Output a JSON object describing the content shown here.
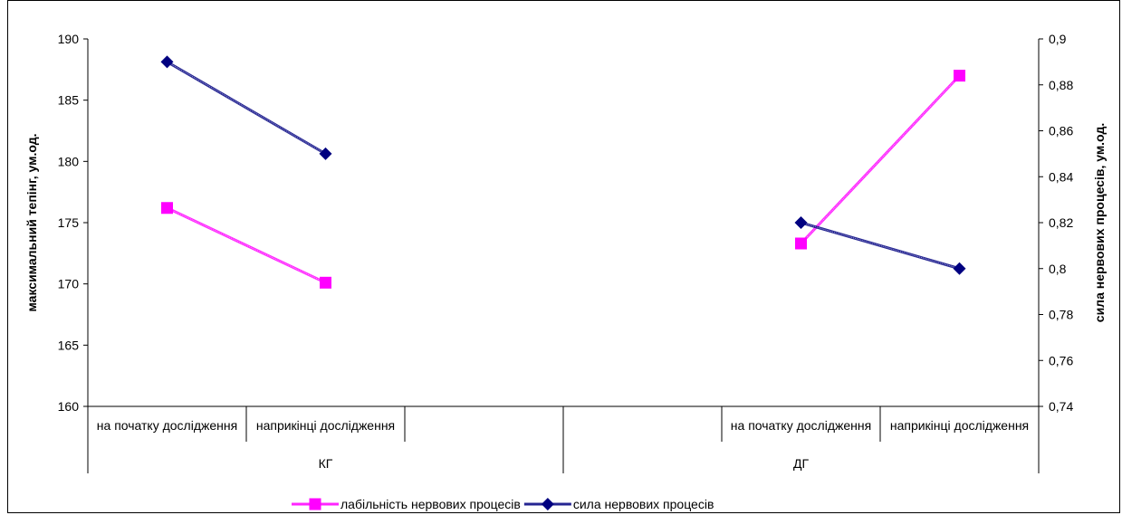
{
  "chart_data": {
    "type": "line",
    "group_labels": [
      "КГ",
      "ДГ"
    ],
    "categories": [
      {
        "label": "на початку дослідження",
        "group": "КГ"
      },
      {
        "label": "наприкінці дослідження",
        "group": "КГ"
      },
      {
        "label": "",
        "group": "КГ"
      },
      {
        "label": "",
        "group": "ДГ"
      },
      {
        "label": "на початку дослідження",
        "group": "ДГ"
      },
      {
        "label": "наприкінці дослідження",
        "group": "ДГ"
      }
    ],
    "ylabel": "максимальний тепінг, ум.од.",
    "y2label": "сила нервових процесів, ум.од.",
    "ylim": [
      160,
      190
    ],
    "y2lim": [
      0.74,
      0.9
    ],
    "y_ticks": [
      "160",
      "165",
      "170",
      "175",
      "180",
      "185",
      "190"
    ],
    "y2_ticks": [
      "0,74",
      "0,76",
      "0,78",
      "0,8",
      "0,82",
      "0,84",
      "0,86",
      "0,88",
      "0,9"
    ],
    "series": [
      {
        "name": "лабільність нервових процесів",
        "axis": "left",
        "color": "#ff00ff",
        "marker": "square",
        "segments": [
          {
            "points": [
              [
                0,
                176.2
              ],
              [
                1,
                170.1
              ]
            ]
          },
          {
            "points": [
              [
                4,
                173.3
              ],
              [
                5,
                187
              ]
            ]
          }
        ]
      },
      {
        "name": "сила нервових процесів",
        "axis": "right",
        "color": "#000080",
        "marker": "diamond",
        "segments": [
          {
            "points": [
              [
                0,
                0.89
              ],
              [
                1,
                0.85
              ]
            ]
          },
          {
            "points": [
              [
                4,
                0.82
              ],
              [
                5,
                0.8
              ]
            ]
          }
        ]
      }
    ],
    "legend_position": "bottom",
    "grid": false
  }
}
